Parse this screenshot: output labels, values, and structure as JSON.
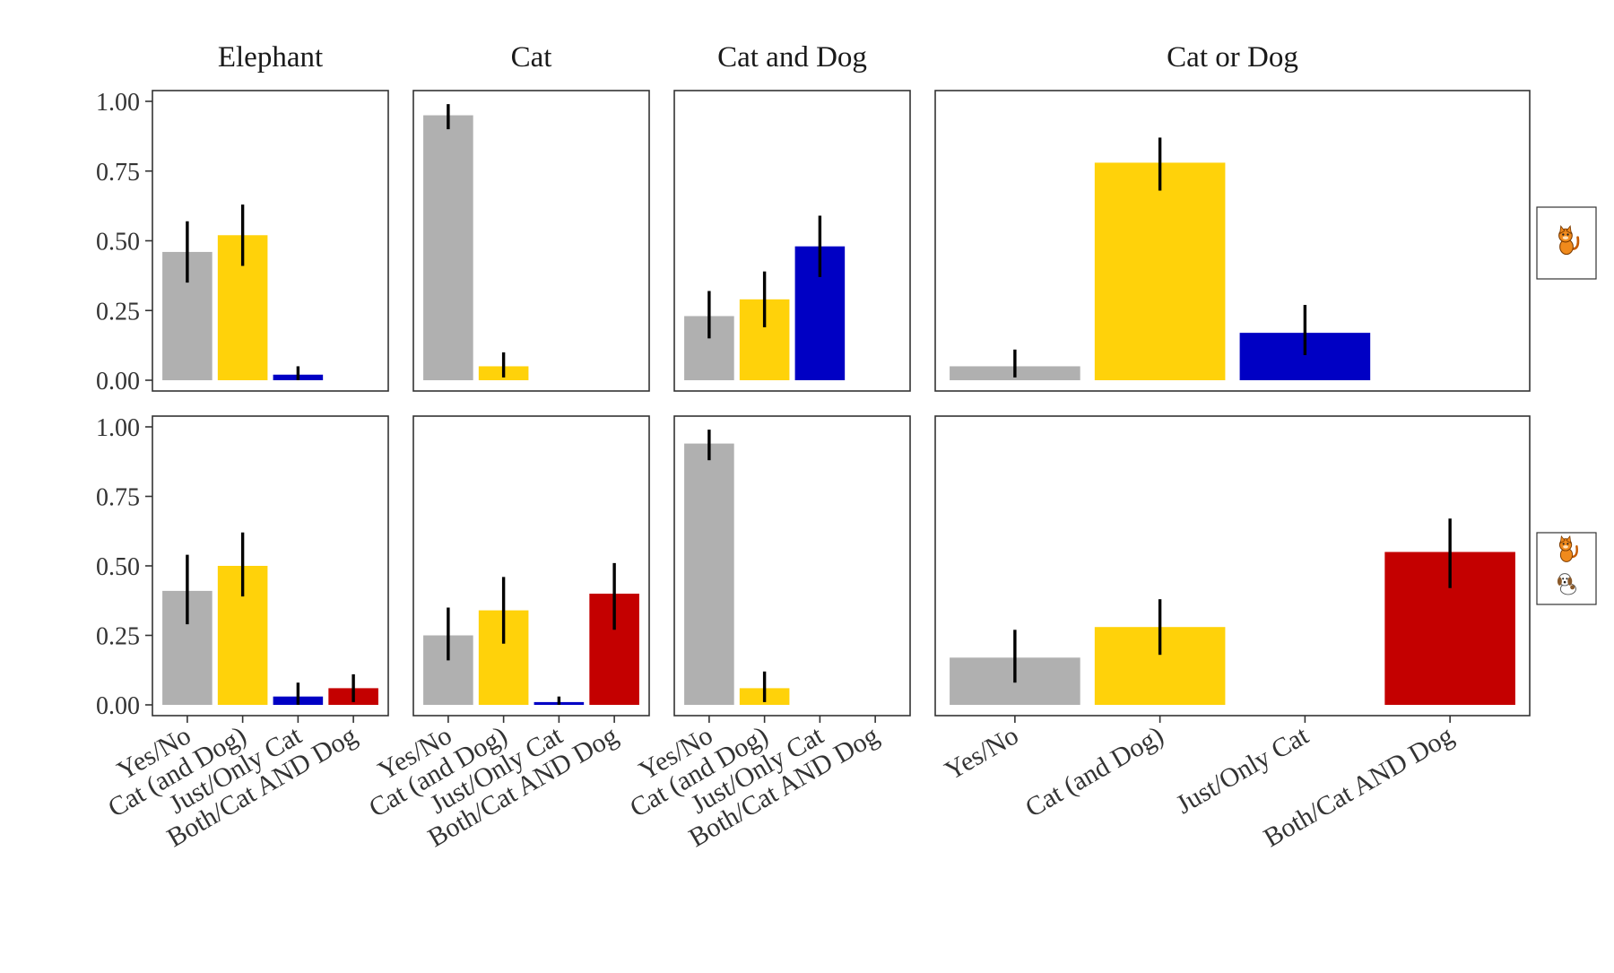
{
  "chart_data": {
    "type": "bar",
    "layout": "facet grid (2 rows x 4 columns) with error bars",
    "column_titles": [
      "Elephant",
      "Cat",
      "Cat and Dog",
      "Cat or Dog"
    ],
    "row_strips": [
      "cat-icon",
      "cat-and-dog-icon"
    ],
    "categories": [
      "Yes/No",
      "Cat (and Dog)",
      "Just/Only Cat",
      "Both/Cat AND Dog"
    ],
    "category_colors": [
      "#b0b0b0",
      "#ffd20a",
      "#0000c4",
      "#c40000"
    ],
    "ylim": [
      0,
      1
    ],
    "yticks": [
      "0.00",
      "0.25",
      "0.50",
      "0.75",
      "1.00"
    ],
    "xlabel": "",
    "ylabel": "",
    "panels": [
      {
        "row": 0,
        "col": 0,
        "values": [
          0.46,
          0.52,
          0.02,
          null
        ],
        "error_low": [
          0.35,
          0.41,
          0.0,
          null
        ],
        "error_high": [
          0.57,
          0.63,
          0.05,
          null
        ]
      },
      {
        "row": 0,
        "col": 1,
        "values": [
          0.95,
          0.05,
          null,
          null
        ],
        "error_low": [
          0.9,
          0.01,
          null,
          null
        ],
        "error_high": [
          0.99,
          0.1,
          null,
          null
        ]
      },
      {
        "row": 0,
        "col": 2,
        "values": [
          0.23,
          0.29,
          0.48,
          null
        ],
        "error_low": [
          0.15,
          0.19,
          0.37,
          null
        ],
        "error_high": [
          0.32,
          0.39,
          0.59,
          null
        ]
      },
      {
        "row": 0,
        "col": 3,
        "values": [
          0.05,
          0.78,
          0.17,
          null
        ],
        "error_low": [
          0.01,
          0.68,
          0.09,
          null
        ],
        "error_high": [
          0.11,
          0.87,
          0.27,
          null
        ]
      },
      {
        "row": 1,
        "col": 0,
        "values": [
          0.41,
          0.5,
          0.03,
          0.06
        ],
        "error_low": [
          0.29,
          0.39,
          0.0,
          0.01
        ],
        "error_high": [
          0.54,
          0.62,
          0.08,
          0.11
        ]
      },
      {
        "row": 1,
        "col": 1,
        "values": [
          0.25,
          0.34,
          0.01,
          0.4
        ],
        "error_low": [
          0.16,
          0.22,
          0.0,
          0.27
        ],
        "error_high": [
          0.35,
          0.46,
          0.03,
          0.51
        ]
      },
      {
        "row": 1,
        "col": 2,
        "values": [
          0.94,
          0.06,
          null,
          null
        ],
        "error_low": [
          0.88,
          0.01,
          null,
          null
        ],
        "error_high": [
          0.99,
          0.12,
          null,
          null
        ]
      },
      {
        "row": 1,
        "col": 3,
        "values": [
          0.17,
          0.28,
          null,
          0.55
        ],
        "error_low": [
          0.08,
          0.18,
          null,
          0.42
        ],
        "error_high": [
          0.27,
          0.38,
          null,
          0.67
        ]
      }
    ]
  }
}
